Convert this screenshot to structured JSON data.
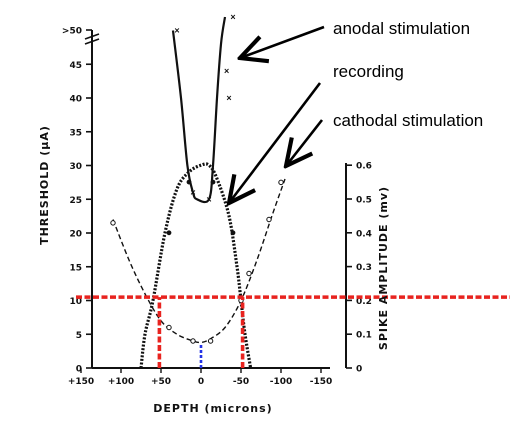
{
  "chart_data": {
    "type": "line",
    "xlabel": "DEPTH (microns)",
    "ylabel_left": "THRESHOLD (μA)",
    "ylabel_right": "SPIKE AMPLITUDE (mv)",
    "xlim": [
      150,
      -150
    ],
    "ylim_left": [
      0,
      50
    ],
    "ylim_right": [
      0,
      0.6
    ],
    "x_ticks": [
      "+150",
      "+100",
      "+50",
      "0",
      "-50",
      "-100",
      "-150"
    ],
    "x_tick_values": [
      150,
      100,
      50,
      0,
      -50,
      -100,
      -150
    ],
    "y_left_ticks": [
      "0",
      "5",
      "10",
      "15",
      "20",
      "25",
      "30",
      "35",
      "40",
      "45",
      ">50"
    ],
    "y_left_tick_values": [
      0,
      5,
      10,
      15,
      20,
      25,
      30,
      35,
      40,
      45,
      50
    ],
    "y_right_ticks": [
      "0",
      "0.1",
      "0.2",
      "0.3",
      "0.4",
      "0.5",
      "0.6"
    ],
    "y_right_tick_values": [
      0,
      0.1,
      0.2,
      0.3,
      0.4,
      0.5,
      0.6
    ],
    "series": [
      {
        "name": "anodal stimulation",
        "axis": "left",
        "style": "solid",
        "points": [
          [
            35,
            50
          ],
          [
            25,
            40
          ],
          [
            17,
            30
          ],
          [
            10,
            26
          ],
          [
            5,
            25
          ],
          [
            -10,
            25
          ],
          [
            -15,
            30
          ],
          [
            -20,
            40
          ],
          [
            -25,
            48
          ],
          [
            -30,
            52
          ]
        ],
        "markers": [
          [
            30,
            50
          ],
          [
            10,
            26
          ],
          [
            -10,
            25
          ],
          [
            -35,
            40
          ],
          [
            -32,
            44
          ],
          [
            -40,
            52
          ]
        ]
      },
      {
        "name": "recording",
        "axis": "right",
        "style": "dotted",
        "points": [
          [
            75,
            0
          ],
          [
            70,
            0.1
          ],
          [
            60,
            0.2
          ],
          [
            45,
            0.4
          ],
          [
            30,
            0.53
          ],
          [
            15,
            0.58
          ],
          [
            0,
            0.6
          ],
          [
            -10,
            0.6
          ],
          [
            -20,
            0.56
          ],
          [
            -35,
            0.45
          ],
          [
            -45,
            0.3
          ],
          [
            -50,
            0.2
          ],
          [
            -55,
            0.1
          ],
          [
            -62,
            0
          ]
        ],
        "markers": [
          [
            40,
            0.4
          ],
          [
            15,
            0.55
          ],
          [
            -15,
            0.55
          ],
          [
            -40,
            0.4
          ]
        ]
      },
      {
        "name": "cathodal stimulation",
        "axis": "left",
        "style": "dashed",
        "points": [
          [
            110,
            22
          ],
          [
            90,
            16
          ],
          [
            70,
            11
          ],
          [
            50,
            7
          ],
          [
            30,
            5
          ],
          [
            10,
            4
          ],
          [
            0,
            3.8
          ],
          [
            -10,
            4.2
          ],
          [
            -30,
            6
          ],
          [
            -50,
            10
          ],
          [
            -70,
            16
          ],
          [
            -90,
            23
          ],
          [
            -105,
            28
          ]
        ],
        "markers": [
          [
            110,
            21.5
          ],
          [
            40,
            6
          ],
          [
            10,
            4
          ],
          [
            -12,
            4
          ],
          [
            -50,
            10
          ],
          [
            -60,
            14
          ],
          [
            -85,
            22
          ],
          [
            -100,
            27.5
          ]
        ]
      }
    ],
    "annotations": [
      {
        "text": "anodal stimulation",
        "points_to": "anodal stimulation"
      },
      {
        "text": "recording",
        "points_to": "recording"
      },
      {
        "text": "cathodal  stimulation",
        "points_to": "cathodal stimulation"
      }
    ],
    "overlays": [
      {
        "type": "hline",
        "color": "#e8231f",
        "style": "dashed",
        "y": 10.5,
        "axis": "left"
      },
      {
        "type": "vline",
        "color": "#e8231f",
        "style": "dashed",
        "x": 52,
        "from": 0,
        "to": 10.5
      },
      {
        "type": "vline",
        "color": "#e8231f",
        "style": "dashed",
        "x": -52,
        "from": 0,
        "to": 10.5
      },
      {
        "type": "vline",
        "color": "#2433e6",
        "style": "dashed",
        "x": 0,
        "from": 0,
        "to": 3.5
      }
    ]
  }
}
